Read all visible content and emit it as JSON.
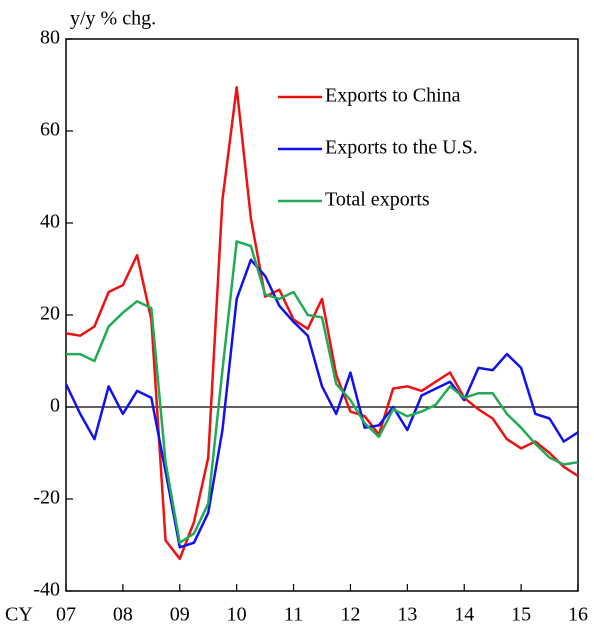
{
  "chart_data": {
    "type": "line",
    "ylabel": "y/y % chg.",
    "xlabel": "CY",
    "x": [
      7,
      7.25,
      7.5,
      7.75,
      8,
      8.25,
      8.5,
      8.75,
      9,
      9.25,
      9.5,
      9.75,
      10,
      10.25,
      10.5,
      10.75,
      11,
      11.25,
      11.5,
      11.75,
      12,
      12.25,
      12.5,
      12.75,
      13,
      13.25,
      13.5,
      13.75,
      14,
      14.25,
      14.5,
      14.75,
      15,
      15.25,
      15.5,
      15.75,
      16
    ],
    "series": [
      {
        "name": "Exports to China",
        "color": "#ee1111",
        "values": [
          16,
          15.5,
          17.5,
          25,
          26.5,
          33,
          19,
          -29,
          -33,
          -25,
          -11,
          45,
          69.5,
          41,
          24,
          25.5,
          19,
          17,
          23.5,
          7,
          -1,
          -2,
          -6,
          4,
          4.5,
          3.5,
          5.5,
          7.5,
          2,
          -0.5,
          -2.5,
          -7,
          -9,
          -7.5,
          -10,
          -13,
          -15
        ]
      },
      {
        "name": "Exports to the U.S.",
        "color": "#1111ee",
        "values": [
          5,
          -1.5,
          -7,
          4.5,
          -1.5,
          3.5,
          2,
          -14,
          -30.5,
          -29.5,
          -23,
          -5,
          23.5,
          32,
          28.5,
          22,
          18.5,
          15.5,
          4.5,
          -1.5,
          7.5,
          -4.5,
          -4,
          0,
          -5,
          2.5,
          4,
          5.5,
          1.5,
          8.5,
          8,
          11.5,
          8.5,
          -1.5,
          -2.5,
          -7.5,
          -5.5
        ]
      },
      {
        "name": "Total exports",
        "color": "#22aa55",
        "values": [
          11.5,
          11.5,
          10,
          17.5,
          20.5,
          23,
          21.5,
          -12,
          -29.5,
          -27.5,
          -21,
          8,
          36,
          35,
          24.5,
          23.5,
          25,
          20,
          19.5,
          5,
          1.5,
          -3.5,
          -6.5,
          -0.5,
          -2,
          -1,
          0.5,
          4.5,
          2,
          3,
          3,
          -1.5,
          -4.5,
          -8,
          -11,
          -12.5,
          -12
        ]
      }
    ],
    "xlim": [
      7,
      16
    ],
    "xticks": [
      {
        "value": 7,
        "label": "07"
      },
      {
        "value": 8,
        "label": "08"
      },
      {
        "value": 9,
        "label": "09"
      },
      10,
      11,
      12,
      13,
      14,
      15,
      16
    ],
    "ylim": [
      -40,
      80
    ],
    "yticks": [
      -40,
      -20,
      0,
      20,
      40,
      60,
      80
    ],
    "grid": false,
    "legend": "upper right"
  }
}
